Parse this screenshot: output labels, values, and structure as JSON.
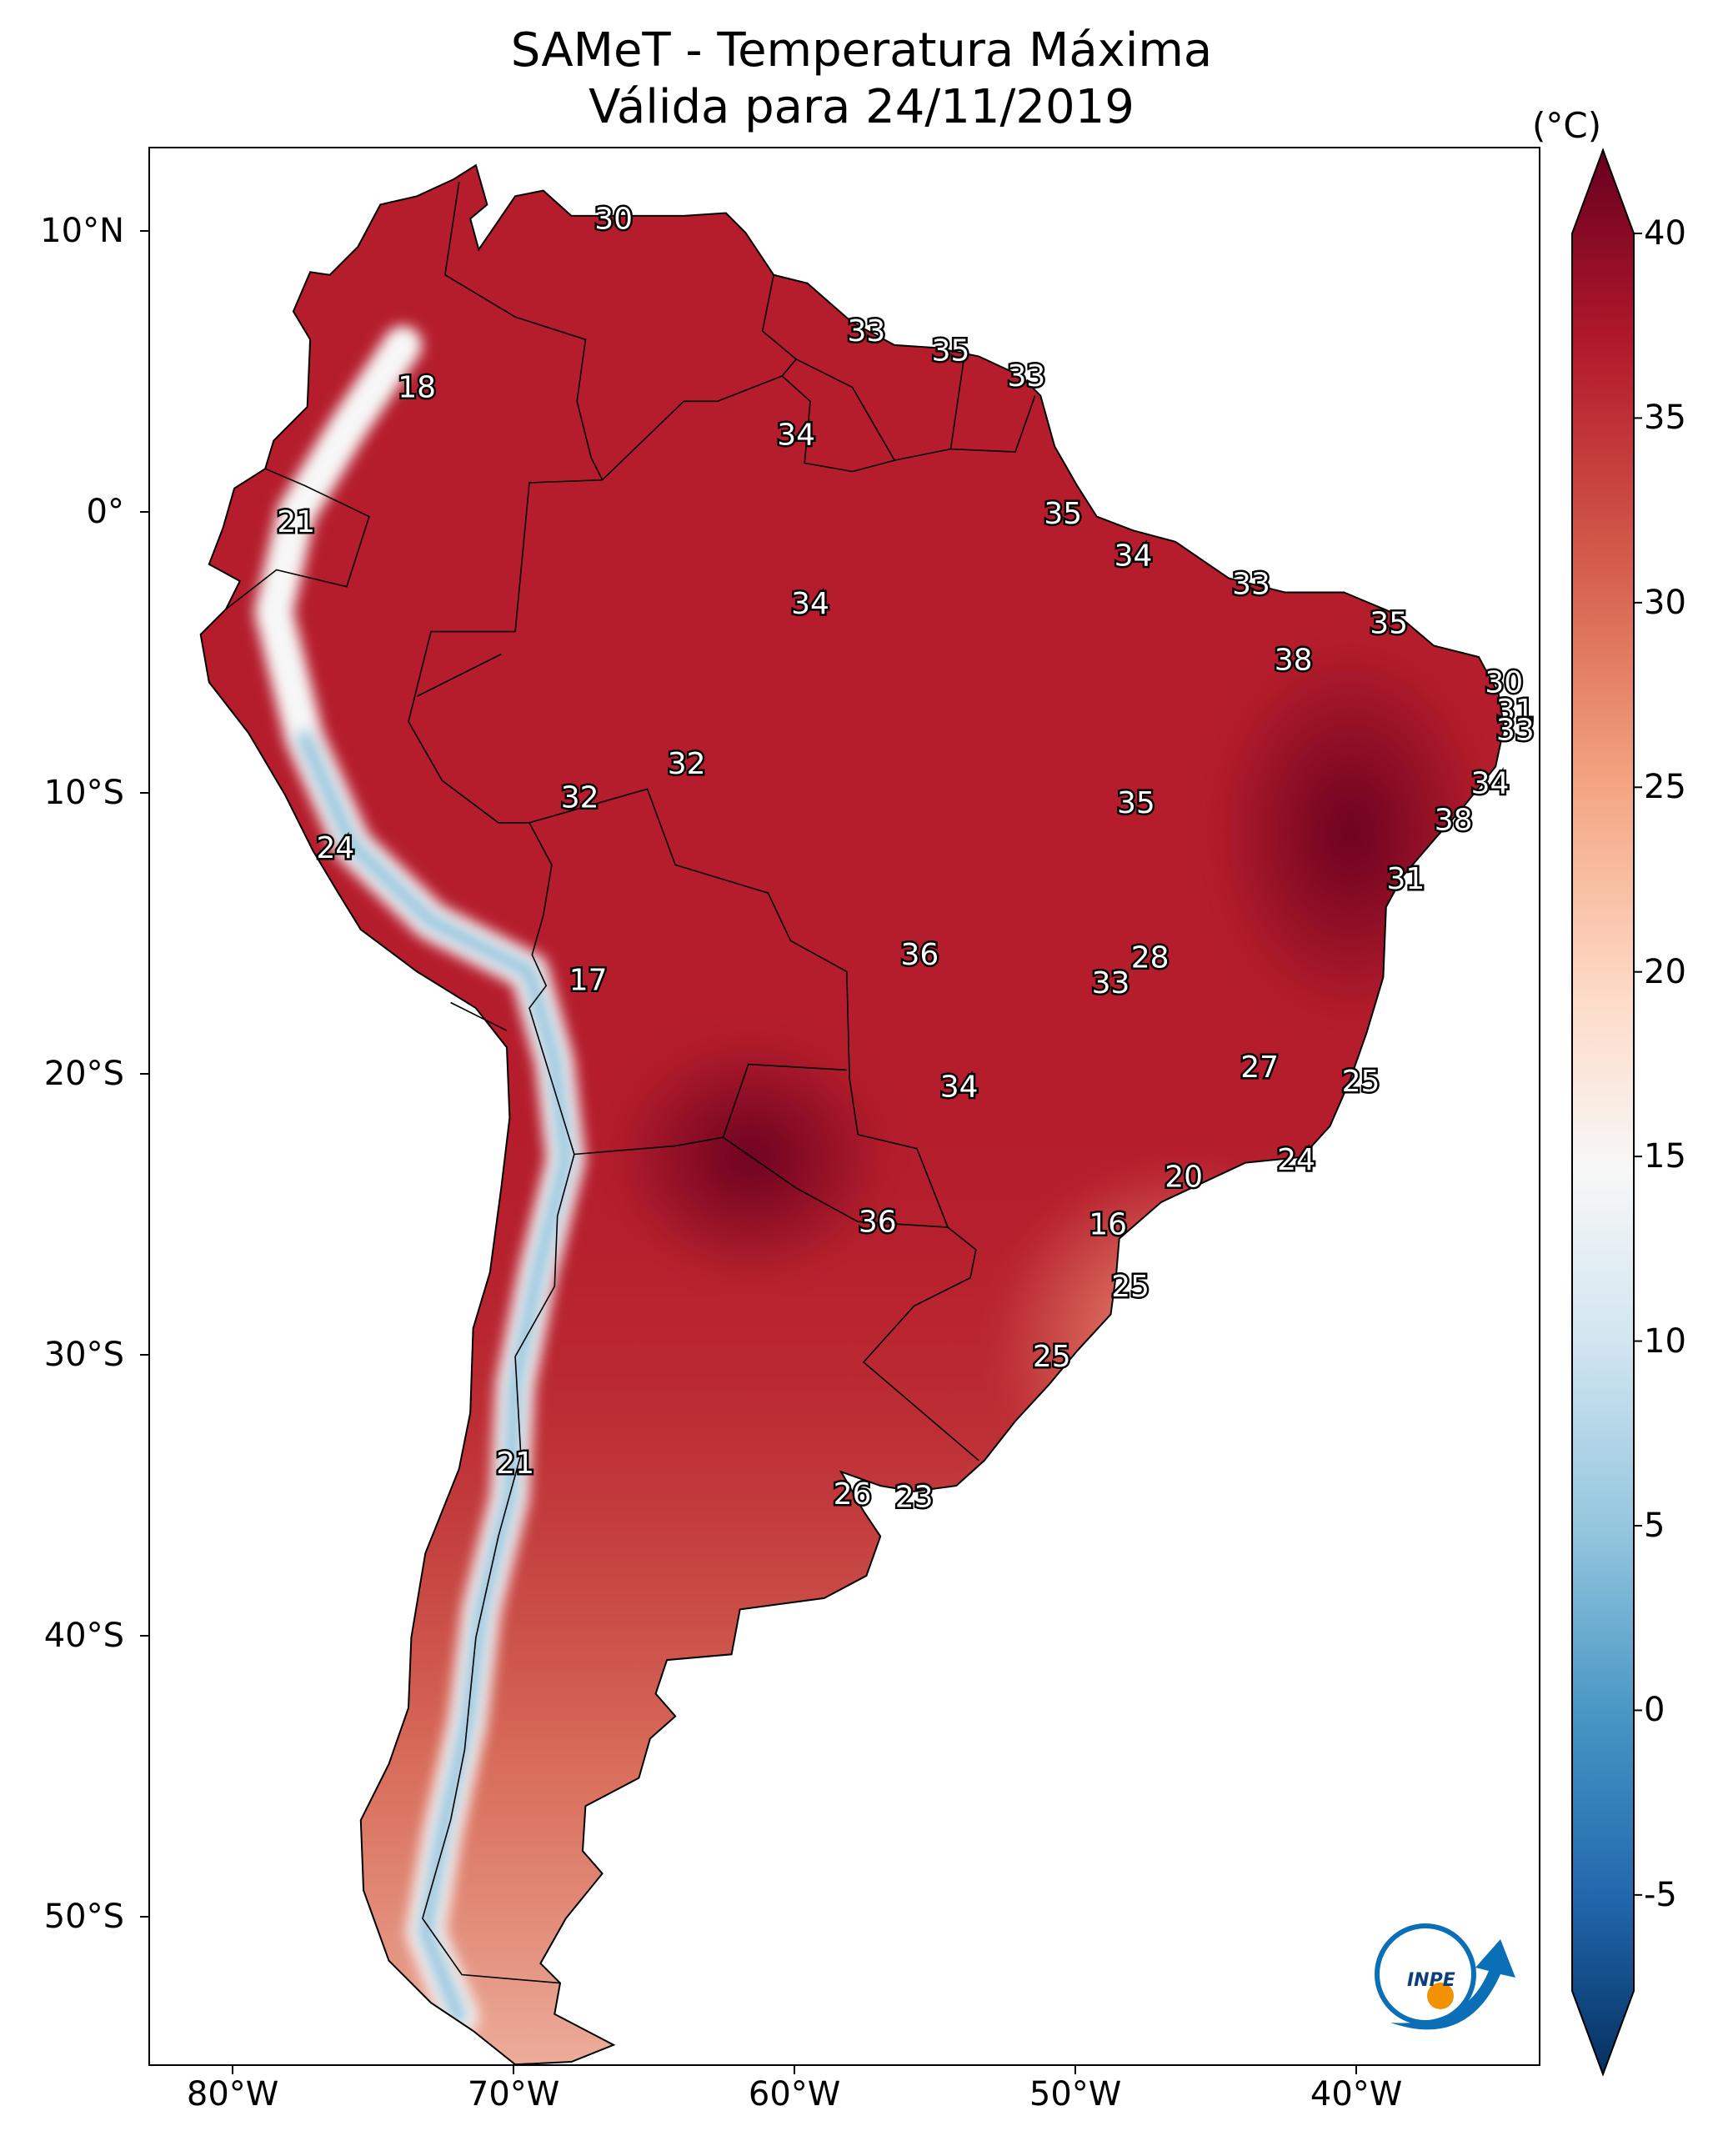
{
  "title": "SAMeT - Temperatura Máxima",
  "subtitle": "Válida para 24/11/2019",
  "colorbar": {
    "unit": "(°C)",
    "ticks": [
      "40",
      "35",
      "30",
      "25",
      "20",
      "15",
      "10",
      "5",
      "0",
      "-5"
    ],
    "range": [
      -5,
      40
    ],
    "colors": [
      "#053061",
      "#2166ac",
      "#4393c3",
      "#92c5de",
      "#d1e5f0",
      "#f7f7f7",
      "#fddbc7",
      "#f4a582",
      "#d6604d",
      "#b2182b",
      "#67001f"
    ]
  },
  "axes": {
    "lat_labels": [
      "10°N",
      "0°",
      "10°S",
      "20°S",
      "30°S",
      "40°S",
      "50°S"
    ],
    "lon_labels": [
      "80°W",
      "70°W",
      "60°W",
      "50°W",
      "40°W"
    ]
  },
  "labels": [
    {
      "text": "30",
      "lon": -66.5,
      "lat": 10.5
    },
    {
      "text": "18",
      "lon": -73.5,
      "lat": 4.5
    },
    {
      "text": "33",
      "lon": -57.5,
      "lat": 6.5
    },
    {
      "text": "35",
      "lon": -54.5,
      "lat": 5.8
    },
    {
      "text": "33",
      "lon": -51.8,
      "lat": 4.9
    },
    {
      "text": "34",
      "lon": -60.0,
      "lat": 2.8
    },
    {
      "text": "21",
      "lon": -77.8,
      "lat": -0.3
    },
    {
      "text": "35",
      "lon": -50.5,
      "lat": 0.0
    },
    {
      "text": "34",
      "lon": -48.0,
      "lat": -1.5
    },
    {
      "text": "33",
      "lon": -43.8,
      "lat": -2.5
    },
    {
      "text": "34",
      "lon": -59.5,
      "lat": -3.2
    },
    {
      "text": "35",
      "lon": -38.9,
      "lat": -3.9
    },
    {
      "text": "38",
      "lon": -42.3,
      "lat": -5.2
    },
    {
      "text": "30",
      "lon": -34.8,
      "lat": -6.0
    },
    {
      "text": "31",
      "lon": -34.4,
      "lat": -7.0
    },
    {
      "text": "33",
      "lon": -34.4,
      "lat": -7.7
    },
    {
      "text": "34",
      "lon": -35.3,
      "lat": -9.6
    },
    {
      "text": "38",
      "lon": -36.6,
      "lat": -10.9
    },
    {
      "text": "31",
      "lon": -38.3,
      "lat": -13.0
    },
    {
      "text": "32",
      "lon": -63.9,
      "lat": -8.9
    },
    {
      "text": "32",
      "lon": -67.7,
      "lat": -10.1
    },
    {
      "text": "35",
      "lon": -47.9,
      "lat": -10.3
    },
    {
      "text": "24",
      "lon": -76.4,
      "lat": -11.9
    },
    {
      "text": "17",
      "lon": -67.4,
      "lat": -16.6
    },
    {
      "text": "36",
      "lon": -55.6,
      "lat": -15.7
    },
    {
      "text": "28",
      "lon": -47.4,
      "lat": -15.8
    },
    {
      "text": "33",
      "lon": -48.8,
      "lat": -16.7
    },
    {
      "text": "27",
      "lon": -43.5,
      "lat": -19.7
    },
    {
      "text": "25",
      "lon": -39.9,
      "lat": -20.2
    },
    {
      "text": "34",
      "lon": -54.2,
      "lat": -20.4
    },
    {
      "text": "24",
      "lon": -42.2,
      "lat": -23.0
    },
    {
      "text": "20",
      "lon": -46.2,
      "lat": -23.6
    },
    {
      "text": "36",
      "lon": -57.1,
      "lat": -25.2
    },
    {
      "text": "16",
      "lon": -48.9,
      "lat": -25.3
    },
    {
      "text": "25",
      "lon": -48.1,
      "lat": -27.5
    },
    {
      "text": "25",
      "lon": -50.9,
      "lat": -30.0
    },
    {
      "text": "21",
      "lon": -70.0,
      "lat": -33.8
    },
    {
      "text": "26",
      "lon": -58.0,
      "lat": -34.9
    },
    {
      "text": "23",
      "lon": -55.8,
      "lat": -35.0
    }
  ],
  "logo": {
    "text": "INPE"
  }
}
